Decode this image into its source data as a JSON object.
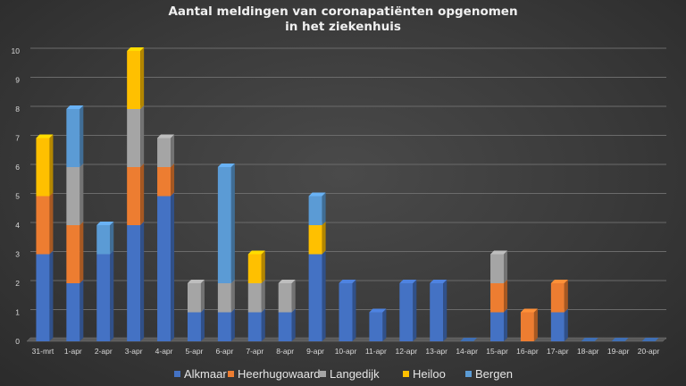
{
  "chart_data": {
    "type": "bar",
    "stacked": true,
    "title_lines": [
      "Aantal meldingen van coronapatiënten opgenomen",
      "in het ziekenhuis"
    ],
    "categories": [
      "31-mrt",
      "1-apr",
      "2-apr",
      "3-apr",
      "4-apr",
      "5-apr",
      "6-apr",
      "7-apr",
      "8-apr",
      "9-apr",
      "10-apr",
      "11-apr",
      "12-apr",
      "13-apr",
      "14-apr",
      "15-apr",
      "16-apr",
      "17-apr",
      "18-apr",
      "19-apr",
      "20-apr"
    ],
    "ylim": [
      0,
      10
    ],
    "yticks": [
      0,
      1,
      2,
      3,
      4,
      5,
      6,
      7,
      8,
      9,
      10
    ],
    "grid": true,
    "legend_position": "bottom",
    "series": [
      {
        "name": "Alkmaar",
        "color": "#4472c4",
        "values": [
          3,
          2,
          3,
          4,
          5,
          1,
          1,
          1,
          1,
          3,
          2,
          1,
          2,
          2,
          0,
          1,
          0,
          1,
          0,
          0,
          0
        ]
      },
      {
        "name": "Heerhugowaard",
        "color": "#ed7d31",
        "values": [
          2,
          2,
          0,
          2,
          1,
          0,
          0,
          0,
          0,
          0,
          0,
          0,
          0,
          0,
          0,
          1,
          1,
          1,
          0,
          0,
          0
        ]
      },
      {
        "name": "Langedijk",
        "color": "#a5a5a5",
        "values": [
          0,
          2,
          0,
          2,
          1,
          1,
          1,
          1,
          1,
          0,
          0,
          0,
          0,
          0,
          0,
          1,
          0,
          0,
          0,
          0,
          0
        ]
      },
      {
        "name": "Heiloo",
        "color": "#ffc000",
        "values": [
          2,
          0,
          0,
          2,
          0,
          0,
          0,
          1,
          0,
          1,
          0,
          0,
          0,
          0,
          0,
          0,
          0,
          0,
          0,
          0,
          0
        ]
      },
      {
        "name": "Bergen",
        "color": "#5b9bd5",
        "values": [
          0,
          2,
          1,
          0,
          0,
          0,
          4,
          0,
          0,
          1,
          0,
          0,
          0,
          0,
          0,
          0,
          0,
          0,
          0,
          0,
          0
        ]
      }
    ]
  }
}
